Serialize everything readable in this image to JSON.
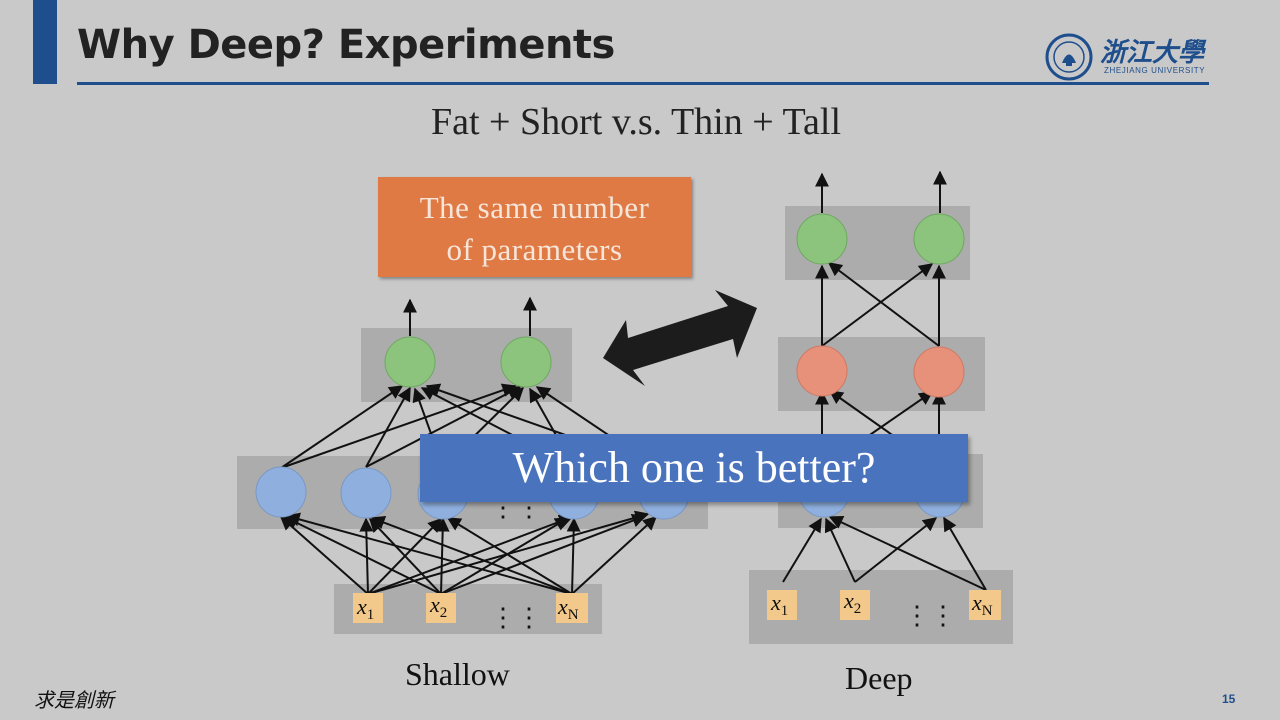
{
  "slide": {
    "title": "Why Deep? Experiments",
    "subtitle": "Fat + Short v.s. Thin + Tall",
    "callout_params": {
      "line1": "The same number",
      "line2": "of parameters"
    },
    "callout_question": "Which one is better?",
    "caption_shallow": "Shallow",
    "caption_deep": "Deep",
    "footer_motto": "求是創新",
    "page_number": "15"
  },
  "logo": {
    "name_cn": "浙江大學",
    "name_en": "ZHEJIANG UNIVERSITY"
  },
  "diagram": {
    "input_labels": [
      {
        "base": "x",
        "sub": "1"
      },
      {
        "base": "x",
        "sub": "2"
      },
      {
        "base": "x",
        "sub": "N"
      }
    ],
    "ellipsis": "⋮⋮"
  },
  "colors": {
    "accent": "#1f4e8c",
    "output_neuron": "#8cc47e",
    "hidden_neuron_shallow": "#8fb0de",
    "hidden_neuron_deep": "#e8917a",
    "input_box": "#f2c98a",
    "params_box": "#e07a45",
    "question_box": "#4a73bd"
  }
}
